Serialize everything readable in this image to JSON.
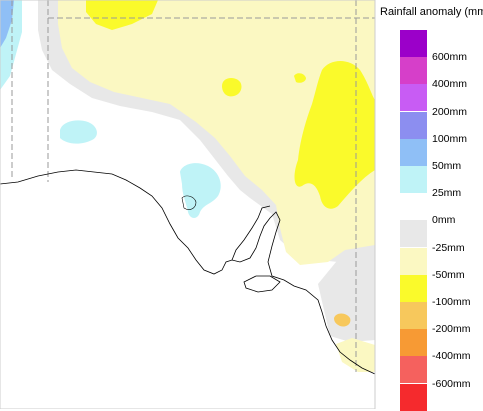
{
  "legend": {
    "title": "Rainfall anomaly (mm)",
    "categories": [
      {
        "color": "#9b00c9"
      },
      {
        "color": "#d63fc9"
      },
      {
        "color": "#c85cf4"
      },
      {
        "color": "#8c8ef0"
      },
      {
        "color": "#8fbff6"
      },
      {
        "color": "#bff3f7"
      },
      {
        "color": "#ffffff"
      },
      {
        "color": "#e8e8e8"
      },
      {
        "color": "#fbf8c2"
      },
      {
        "color": "#fafa2b"
      },
      {
        "color": "#f7c85c"
      },
      {
        "color": "#f79a34"
      },
      {
        "color": "#f5615e"
      },
      {
        "color": "#f52a2d"
      }
    ],
    "boundary_labels": [
      "600mm",
      "400mm",
      "200mm",
      "100mm",
      "50mm",
      "25mm",
      "0mm",
      "-25mm",
      "-50mm",
      "-100mm",
      "-200mm",
      "-400mm",
      "-600mm"
    ]
  },
  "colors": {
    "land_normal": "#ffffff",
    "ocean": "#ffffff",
    "coastline": "#000000",
    "border": "#9a9a9a"
  }
}
